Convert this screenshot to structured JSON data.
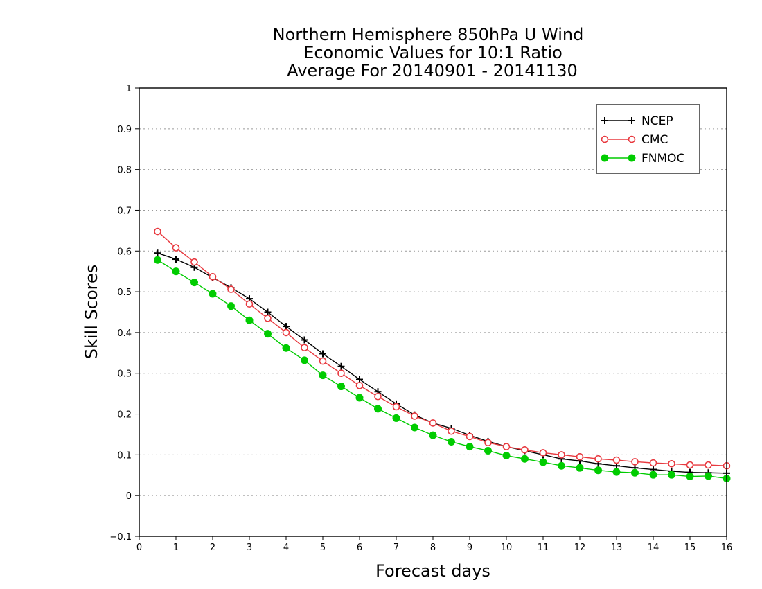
{
  "chart_data": {
    "type": "line",
    "title": [
      "Northern Hemisphere 850hPa U Wind",
      "Economic Values for 10:1 Ratio",
      "Average For 20140901 - 20141130"
    ],
    "xlabel": "Forecast days",
    "ylabel": "Skill Scores",
    "xlim": [
      0,
      16
    ],
    "ylim": [
      -0.1,
      1
    ],
    "x_ticks": [
      "0",
      "1",
      "2",
      "3",
      "4",
      "5",
      "6",
      "7",
      "8",
      "9",
      "10",
      "11",
      "12",
      "13",
      "14",
      "15",
      "16"
    ],
    "y_ticks": [
      "−0.1",
      "0",
      "0.1",
      "0.2",
      "0.3",
      "0.4",
      "0.5",
      "0.6",
      "0.7",
      "0.8",
      "0.9",
      "1"
    ],
    "grid": "horizontal dotted",
    "legend_position": "top-right",
    "x": [
      0.5,
      1,
      1.5,
      2,
      2.5,
      3,
      3.5,
      4,
      4.5,
      5,
      5.5,
      6,
      6.5,
      7,
      7.5,
      8,
      8.5,
      9,
      9.5,
      10,
      10.5,
      11,
      11.5,
      12,
      12.5,
      13,
      13.5,
      14,
      14.5,
      15,
      15.5,
      16
    ],
    "series": [
      {
        "name": "NCEP",
        "color": "#000000",
        "marker": "plus",
        "values": [
          0.595,
          0.58,
          0.56,
          0.535,
          0.51,
          0.483,
          0.45,
          0.415,
          0.382,
          0.348,
          0.317,
          0.285,
          0.255,
          0.225,
          0.198,
          0.178,
          0.165,
          0.148,
          0.133,
          0.12,
          0.11,
          0.1,
          0.09,
          0.085,
          0.078,
          0.073,
          0.068,
          0.064,
          0.06,
          0.057,
          0.056,
          0.055
        ]
      },
      {
        "name": "CMC",
        "color": "#e8393f",
        "marker": "open-circle",
        "values": [
          0.648,
          0.608,
          0.573,
          0.537,
          0.506,
          0.47,
          0.435,
          0.4,
          0.363,
          0.33,
          0.3,
          0.27,
          0.243,
          0.218,
          0.195,
          0.178,
          0.158,
          0.145,
          0.13,
          0.12,
          0.112,
          0.105,
          0.1,
          0.095,
          0.09,
          0.087,
          0.083,
          0.08,
          0.078,
          0.075,
          0.075,
          0.073
        ]
      },
      {
        "name": "FNMOC",
        "color": "#00cc00",
        "marker": "filled-circle",
        "values": [
          0.578,
          0.55,
          0.523,
          0.495,
          0.465,
          0.43,
          0.397,
          0.362,
          0.332,
          0.295,
          0.268,
          0.24,
          0.213,
          0.19,
          0.167,
          0.148,
          0.132,
          0.12,
          0.11,
          0.098,
          0.09,
          0.082,
          0.073,
          0.068,
          0.062,
          0.058,
          0.056,
          0.051,
          0.051,
          0.047,
          0.048,
          0.042
        ]
      }
    ]
  }
}
